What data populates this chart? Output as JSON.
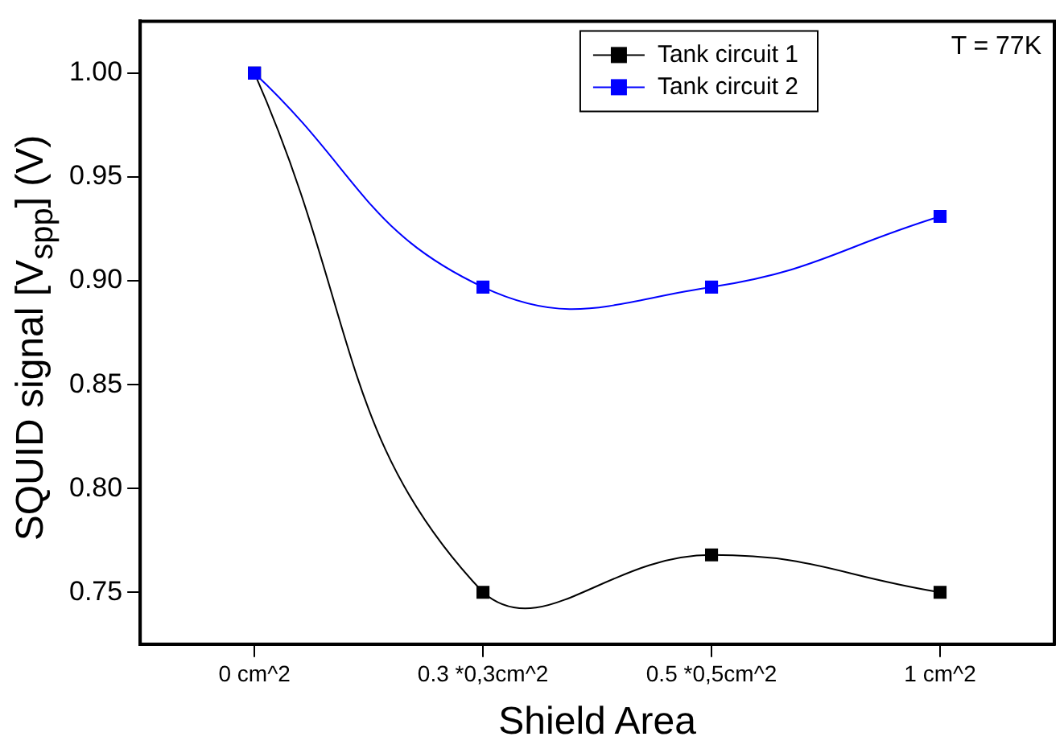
{
  "chart_data": {
    "type": "line",
    "xlabel": "Shield Area",
    "ylabel": "SQUID signal [V$_{spp}$] (V)",
    "categories": [
      "0 cm^2",
      "0.3 *0,3cm^2",
      "0.5 *0,5cm^2",
      "1 cm^2"
    ],
    "series": [
      {
        "name": "Tank circuit 1",
        "color": "#000000",
        "values": [
          1.0,
          0.75,
          0.768,
          0.75
        ]
      },
      {
        "name": "Tank circuit 2",
        "color": "#0000ff",
        "values": [
          1.0,
          0.897,
          0.897,
          0.931
        ]
      }
    ],
    "ylim": [
      0.725,
      1.025
    ],
    "yticks": [
      {
        "value": 0.75,
        "label": "0.75"
      },
      {
        "value": 0.8,
        "label": "0.80"
      },
      {
        "value": 0.85,
        "label": "0.85"
      },
      {
        "value": 0.9,
        "label": "0.90"
      },
      {
        "value": 0.95,
        "label": "0.95"
      },
      {
        "value": 1.0,
        "label": "1.00"
      }
    ],
    "annotations": [
      "T = 77K"
    ],
    "grid": false,
    "legend": "top right",
    "marker": "square",
    "line_style": "solid"
  }
}
